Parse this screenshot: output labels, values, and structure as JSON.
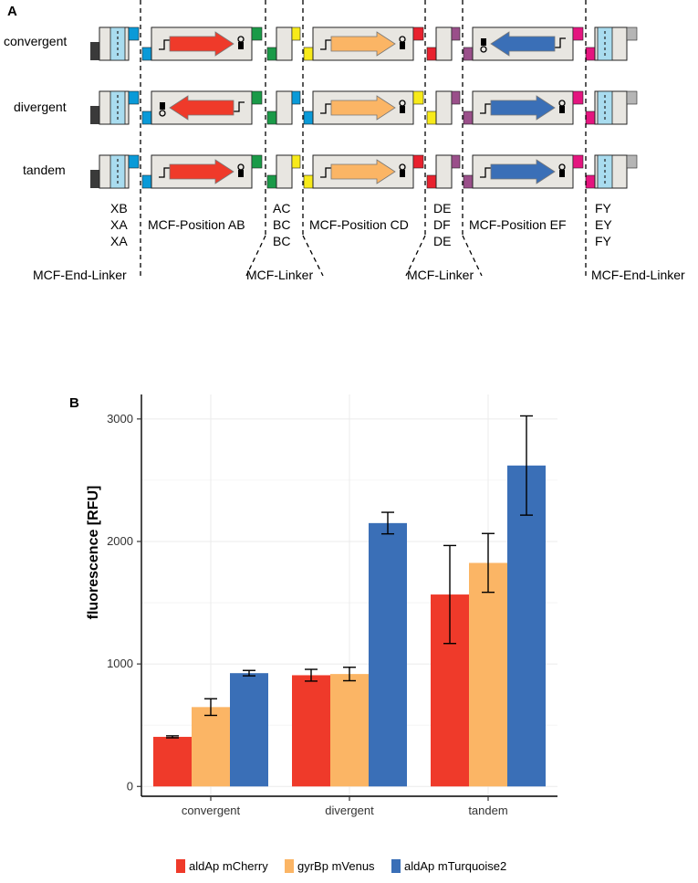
{
  "panel_a": {
    "letter": "A",
    "rows": [
      {
        "label": "convergent"
      },
      {
        "label": "divergent"
      },
      {
        "label": "tandem"
      }
    ],
    "linker_codes": {
      "end_left": [
        "XB",
        "XA",
        "XA"
      ],
      "mid1": [
        "AC",
        "BC",
        "BC"
      ],
      "mid2": [
        "DE",
        "DF",
        "DE"
      ],
      "end_right": [
        "FY",
        "EY",
        "FY"
      ]
    },
    "positions": {
      "ab": "MCF-Position AB",
      "cd": "MCF-Position CD",
      "ef": "MCF-Position EF"
    },
    "bottom_labels": {
      "end_left": "MCF-End-Linker",
      "mid1": "MCF-Linker",
      "mid2": "MCF-Linker",
      "end_right": "MCF-End-Linker"
    },
    "colors": {
      "red": "#ef3a2a",
      "orange": "#fbb565",
      "blue": "#3a6fb7",
      "dark": "#3a3a3a",
      "light_blue": "#a9dcef",
      "cyan": "#0a9ad8",
      "green": "#1a9a48",
      "yellow": "#f7ea1a",
      "crimson": "#e8212e",
      "purple": "#9a4f8a",
      "magenta": "#e4157f",
      "grey": "#b5b5b5",
      "box_bg": "#e8e6e1"
    }
  },
  "panel_b": {
    "letter": "B"
  },
  "chart_data": {
    "type": "bar",
    "categories": [
      "convergent",
      "divergent",
      "tandem"
    ],
    "series": [
      {
        "name": "aldAp mCherry",
        "color": "#ef3a2a",
        "values": [
          405,
          908,
          1567
        ],
        "errors": [
          8,
          48,
          400
        ]
      },
      {
        "name": "gyrBp mVenus",
        "color": "#fbb565",
        "values": [
          648,
          918,
          1825
        ],
        "errors": [
          68,
          55,
          240
        ]
      },
      {
        "name": "aldAp mTurquoise2",
        "color": "#3a6fb7",
        "values": [
          925,
          2150,
          2620
        ],
        "errors": [
          22,
          88,
          405
        ]
      }
    ],
    "ylabel": "fluorescence [RFU]",
    "xlabel": "",
    "ylim": [
      -80,
      3200
    ],
    "yticks": [
      0,
      1000,
      2000,
      3000
    ],
    "grid": true,
    "legend": "bottom"
  }
}
